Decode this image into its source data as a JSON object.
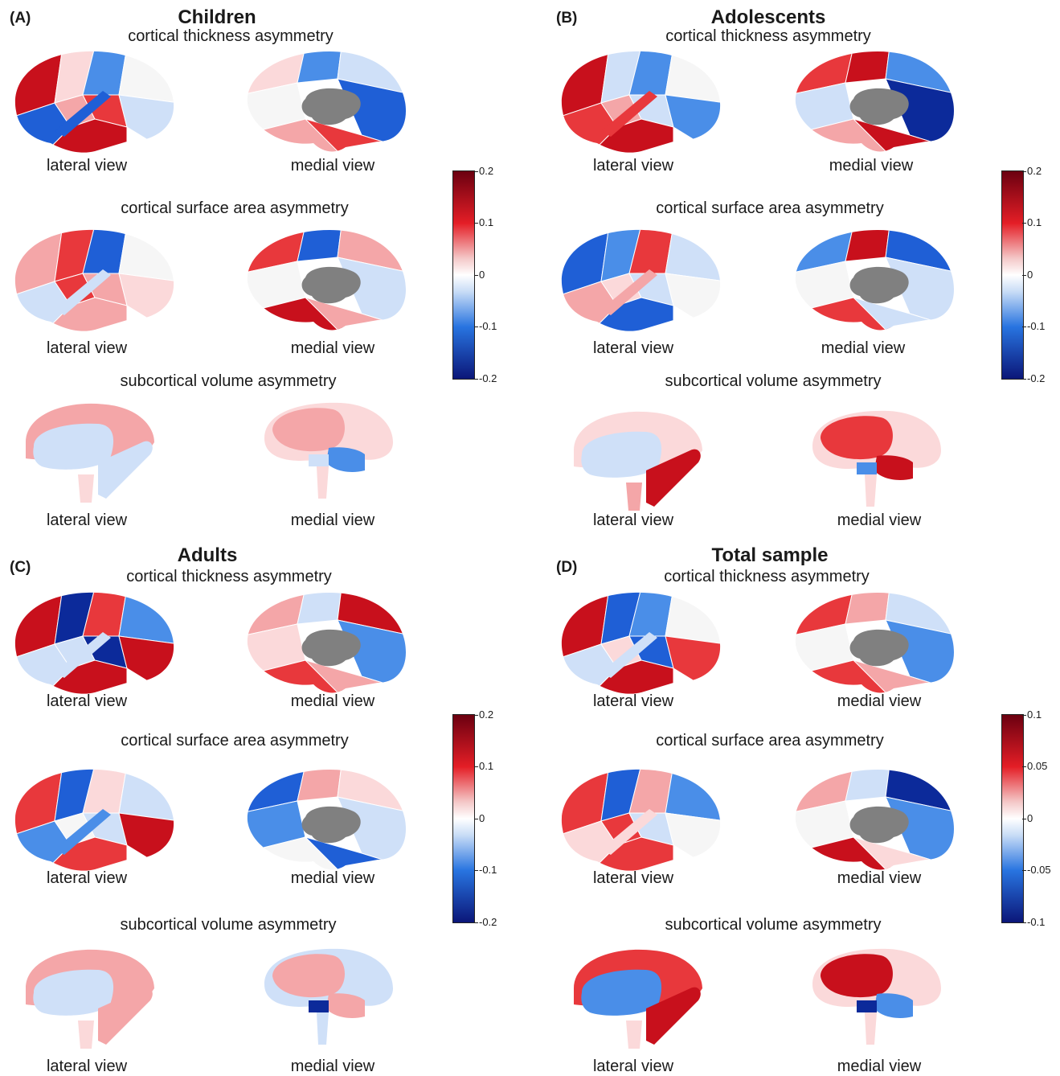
{
  "panels": [
    {
      "letter": "(A)",
      "title": "Children"
    },
    {
      "letter": "(B)",
      "title": "Adolescents"
    },
    {
      "letter": "(C)",
      "title": "Adults"
    },
    {
      "letter": "(D)",
      "title": "Total sample"
    }
  ],
  "section_titles": {
    "thickness": "cortical thickness asymmetry",
    "surface": "cortical surface area asymmetry",
    "subcortical": "subcortical volume asymmetry"
  },
  "view_labels": {
    "lateral": "lateral view",
    "medial": "medial view"
  },
  "colorbars": {
    "A": [
      "0.2",
      "0.1",
      "0",
      "-0.1",
      "-0.2"
    ],
    "B": [
      "0.2",
      "0.1",
      "0",
      "-0.1",
      "-0.2"
    ],
    "C": [
      "0.2",
      "0.1",
      "0",
      "-0.1",
      "-0.2"
    ],
    "D": [
      "0.1",
      "0.05",
      "0",
      "-0.05",
      "-0.1"
    ]
  },
  "colors": {
    "strong_red": "#c8101c",
    "red": "#e8383c",
    "pink": "#f4a6a8",
    "light_pink": "#fbd9da",
    "white": "#f6f6f6",
    "light_blue": "#cfe0f8",
    "blue": "#4a8ee8",
    "strong_blue": "#1f5fd6",
    "dark_blue": "#0c2a9a",
    "gray": "#808080"
  }
}
